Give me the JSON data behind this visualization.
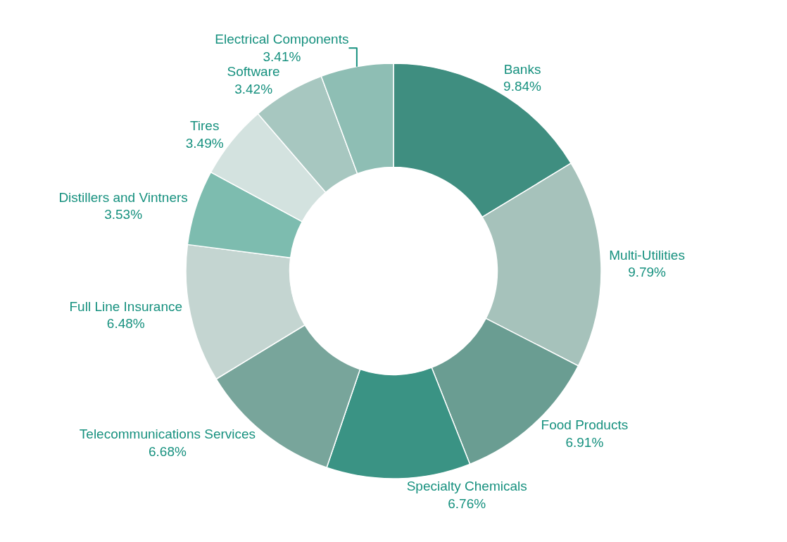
{
  "chart_data": {
    "type": "donut",
    "categories": [
      "Banks",
      "Multi-Utilities",
      "Food Products",
      "Specialty Chemicals",
      "Telecommunications Services",
      "Full Line Insurance",
      "Distillers and Vintners",
      "Tires",
      "Software",
      "Electrical Components"
    ],
    "values": [
      9.84,
      9.79,
      6.91,
      6.76,
      6.68,
      6.48,
      3.53,
      3.49,
      3.42,
      3.41
    ],
    "value_labels": [
      "9.84%",
      "9.79%",
      "6.91%",
      "6.76%",
      "6.68%",
      "6.48%",
      "3.53%",
      "3.49%",
      "3.42%",
      "3.41%"
    ],
    "colors": [
      "#3f8e80",
      "#a6c2bb",
      "#6a9d92",
      "#3a9384",
      "#78a59b",
      "#c4d5d1",
      "#7dbcaf",
      "#d3e2df",
      "#a7c7c0",
      "#8ebeb4"
    ],
    "legend": false
  }
}
